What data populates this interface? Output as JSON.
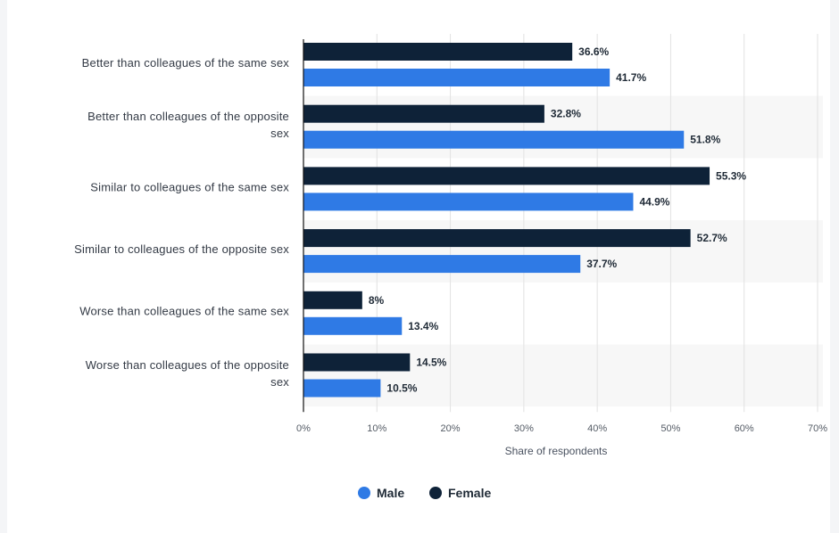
{
  "colors": {
    "male": "#2f7ae5",
    "female": "#0e2238",
    "band": "#f7f7f7",
    "grid": "#e2e2e2",
    "axis": "#111111"
  },
  "chart_data": {
    "type": "bar",
    "orientation": "horizontal",
    "categories": [
      [
        "Better than colleagues of the same sex"
      ],
      [
        "Better than colleagues of the opposite",
        "sex"
      ],
      [
        "Similar to colleagues of the same sex"
      ],
      [
        "Similar to colleagues of the opposite sex"
      ],
      [
        "Worse than colleagues of the same sex"
      ],
      [
        "Worse than colleagues of the opposite",
        "sex"
      ]
    ],
    "series": [
      {
        "name": "Female",
        "color_key": "female",
        "values": [
          36.6,
          32.8,
          55.3,
          52.7,
          8,
          14.5
        ],
        "labels": [
          "36.6%",
          "32.8%",
          "55.3%",
          "52.7%",
          "8%",
          "14.5%"
        ]
      },
      {
        "name": "Male",
        "color_key": "male",
        "values": [
          41.7,
          51.8,
          44.9,
          37.7,
          13.4,
          10.5
        ],
        "labels": [
          "41.7%",
          "51.8%",
          "44.9%",
          "37.7%",
          "13.4%",
          "10.5%"
        ]
      }
    ],
    "xlim": [
      0,
      70
    ],
    "xticks": [
      0,
      10,
      20,
      30,
      40,
      50,
      60,
      70
    ],
    "xtick_labels": [
      "0%",
      "10%",
      "20%",
      "30%",
      "40%",
      "50%",
      "60%",
      "70%"
    ],
    "xlabel": "Share of respondents",
    "ylabel": "",
    "title": "",
    "grid": true,
    "legend": {
      "placement": "bottom-center",
      "entries": [
        {
          "name": "Male",
          "color_key": "male"
        },
        {
          "name": "Female",
          "color_key": "female"
        }
      ]
    }
  }
}
